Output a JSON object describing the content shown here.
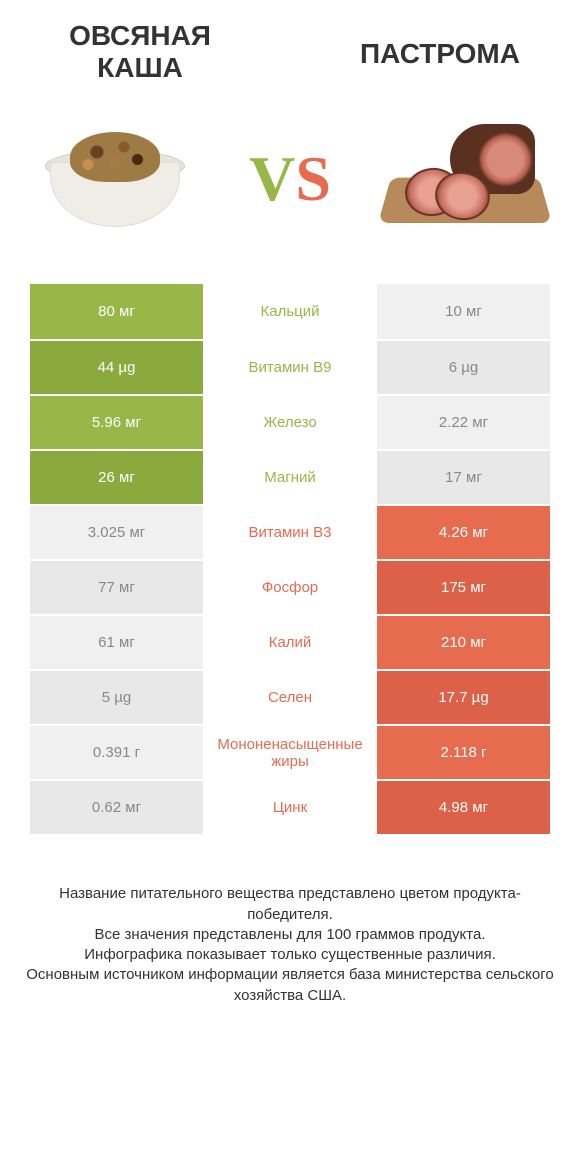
{
  "header": {
    "left_title": "ОВСЯНАЯ КАША",
    "right_title": "ПАСТРОМА",
    "vs_v": "V",
    "vs_s": "S"
  },
  "colors": {
    "left_bg": "#97b848",
    "left_bg_alt": "#8aaa3e",
    "right_bg": "#e66b4f",
    "right_bg_alt": "#dd6148",
    "left_text": "#97b848",
    "right_text": "#e66b4f",
    "neutral_bg": "#f0f0f0",
    "neutral_bg_alt": "#e8e8e8",
    "neutral_text": "#888888"
  },
  "rows": [
    {
      "nutrient": "Кальций",
      "left": "80 мг",
      "right": "10 мг",
      "winner": "left"
    },
    {
      "nutrient": "Витамин B9",
      "left": "44 µg",
      "right": "6 µg",
      "winner": "left"
    },
    {
      "nutrient": "Железо",
      "left": "5.96 мг",
      "right": "2.22 мг",
      "winner": "left"
    },
    {
      "nutrient": "Магний",
      "left": "26 мг",
      "right": "17 мг",
      "winner": "left"
    },
    {
      "nutrient": "Витамин B3",
      "left": "3.025 мг",
      "right": "4.26 мг",
      "winner": "right"
    },
    {
      "nutrient": "Фосфор",
      "left": "77 мг",
      "right": "175 мг",
      "winner": "right"
    },
    {
      "nutrient": "Калий",
      "left": "61 мг",
      "right": "210 мг",
      "winner": "right"
    },
    {
      "nutrient": "Селен",
      "left": "5 µg",
      "right": "17.7 µg",
      "winner": "right"
    },
    {
      "nutrient": "Мононенасыщенные жиры",
      "left": "0.391 г",
      "right": "2.118 г",
      "winner": "right"
    },
    {
      "nutrient": "Цинк",
      "left": "0.62 мг",
      "right": "4.98 мг",
      "winner": "right"
    }
  ],
  "footer": {
    "line1": "Название питательного вещества представлено цветом продукта-победителя.",
    "line2": "Все значения представлены для 100 граммов продукта.",
    "line3": "Инфографика показывает только существенные различия.",
    "line4": "Основным источником информации является база министерства сельского хозяйства США."
  }
}
